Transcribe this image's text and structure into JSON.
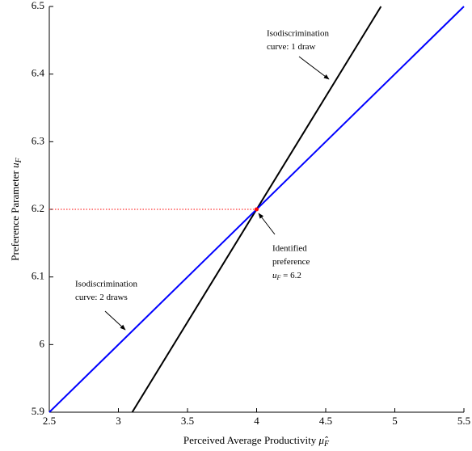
{
  "chart_data": {
    "type": "line",
    "x_label": {
      "text": "Perceived Average Productivity ",
      "symbol": "μ̂",
      "sub": "F"
    },
    "y_label": {
      "text": "Preference Parameter ",
      "symbol": "u",
      "sub": "F"
    },
    "series": [
      {
        "color": "#000000",
        "x": [
          3.1,
          4.9
        ],
        "values": [
          5.9,
          6.5
        ]
      },
      {
        "color": "#0000ff",
        "x": [
          2.5,
          5.5
        ],
        "values": [
          5.9,
          6.5
        ]
      },
      {
        "color": "#ff0000",
        "dash": true,
        "x": [
          2.5,
          4
        ],
        "values": [
          6.2,
          6.2
        ]
      }
    ],
    "point": {
      "x": 4,
      "y": 6.2,
      "color": "#ff0000"
    },
    "annotations": [
      {
        "lines": [
          "Isodiscrimination",
          "curve: 1 draw"
        ]
      },
      {
        "lines": [
          "Identified",
          "preference"
        ],
        "math": {
          "symbol": "u",
          "sub": "F",
          "rest": " = 6.2"
        }
      },
      {
        "lines": [
          "Isodiscrimination",
          "curve: 2 draws"
        ]
      }
    ],
    "xlim": [
      2.5,
      5.5
    ],
    "ylim": [
      5.9,
      6.5
    ],
    "xticks": [
      2.5,
      3,
      3.5,
      4,
      4.5,
      5,
      5.5
    ],
    "yticks": [
      5.9,
      6,
      6.1,
      6.2,
      6.3,
      6.4,
      6.5
    ]
  }
}
